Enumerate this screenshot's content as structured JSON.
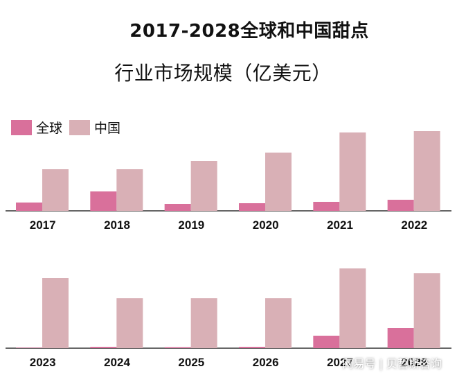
{
  "title_line1": "2017-2028全球和中国甜点",
  "title_line2": "行业市场规模（亿美元）",
  "watermark": "网易号 | 贝哲斯咨询",
  "colors": {
    "global": "#d9709b",
    "china": "#d9b0b6",
    "axis": "#333333"
  },
  "chart_data": {
    "type": "bar",
    "title": "2017-2028全球和中国甜点行业市场规模（亿美元）",
    "xlabel": "",
    "ylabel": "",
    "legend": {
      "position": "top-left",
      "entries": [
        "全球",
        "中国"
      ]
    },
    "grid": false,
    "panels": [
      {
        "categories": [
          "2017",
          "2018",
          "2019",
          "2020",
          "2021",
          "2022"
        ],
        "series": [
          {
            "name": "全球",
            "values": [
              12,
              28,
              10,
              11,
              13,
              16
            ]
          },
          {
            "name": "中国",
            "values": [
              60,
              60,
              72,
              84,
              113,
              115
            ]
          }
        ]
      },
      {
        "categories": [
          "2023",
          "2024",
          "2025",
          "2026",
          "2027",
          "2028"
        ],
        "series": [
          {
            "name": "全球",
            "values": [
              0,
              2,
              1,
              2,
              18,
              29
            ]
          },
          {
            "name": "中国",
            "values": [
              101,
              72,
              72,
              72,
              115,
              108
            ]
          }
        ]
      }
    ]
  }
}
